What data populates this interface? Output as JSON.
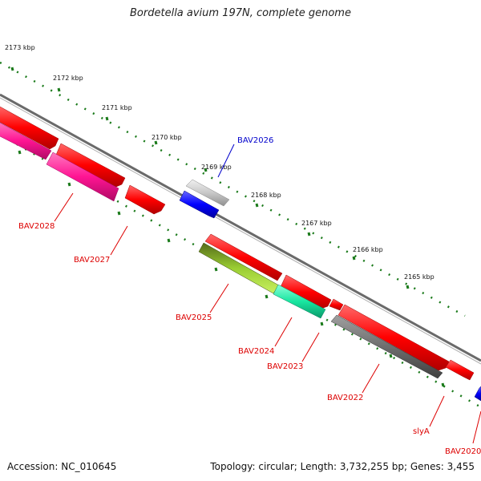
{
  "title": "Bordetella avium 197N, complete genome",
  "accession_label": "Accession: NC_010645",
  "info_label": "Topology: circular; Length: 3,732,255 bp; Genes: 3,455",
  "ticks": [
    {
      "label": "2173 kbp"
    },
    {
      "label": "2172 kbp"
    },
    {
      "label": "2171 kbp"
    },
    {
      "label": "2170 kbp"
    },
    {
      "label": "2169 kbp"
    },
    {
      "label": "2168 kbp"
    },
    {
      "label": "2167 kbp"
    },
    {
      "label": "2166 kbp"
    },
    {
      "label": "2165 kbp"
    }
  ],
  "genes": [
    {
      "name": "BAV2026",
      "color": "#0000cc"
    },
    {
      "name": "BAV2028",
      "color": "#dd0000"
    },
    {
      "name": "BAV2027",
      "color": "#dd0000"
    },
    {
      "name": "BAV2025",
      "color": "#dd0000"
    },
    {
      "name": "BAV2024",
      "color": "#dd0000"
    },
    {
      "name": "BAV2023",
      "color": "#dd0000"
    },
    {
      "name": "BAV2022",
      "color": "#dd0000"
    },
    {
      "name": "slyA",
      "color": "#dd0000"
    },
    {
      "name": "BAV2020",
      "color": "#dd0000"
    }
  ],
  "colors": {
    "backbone": "#777777",
    "tick": "#1a7a1a",
    "red": "#ff0000",
    "pink": "#ff1493",
    "blue": "#0000ff",
    "silver": "#c8c8c8",
    "olive": "#9acd32",
    "teal": "#19e6a0",
    "gray": "#6e6e6e"
  }
}
